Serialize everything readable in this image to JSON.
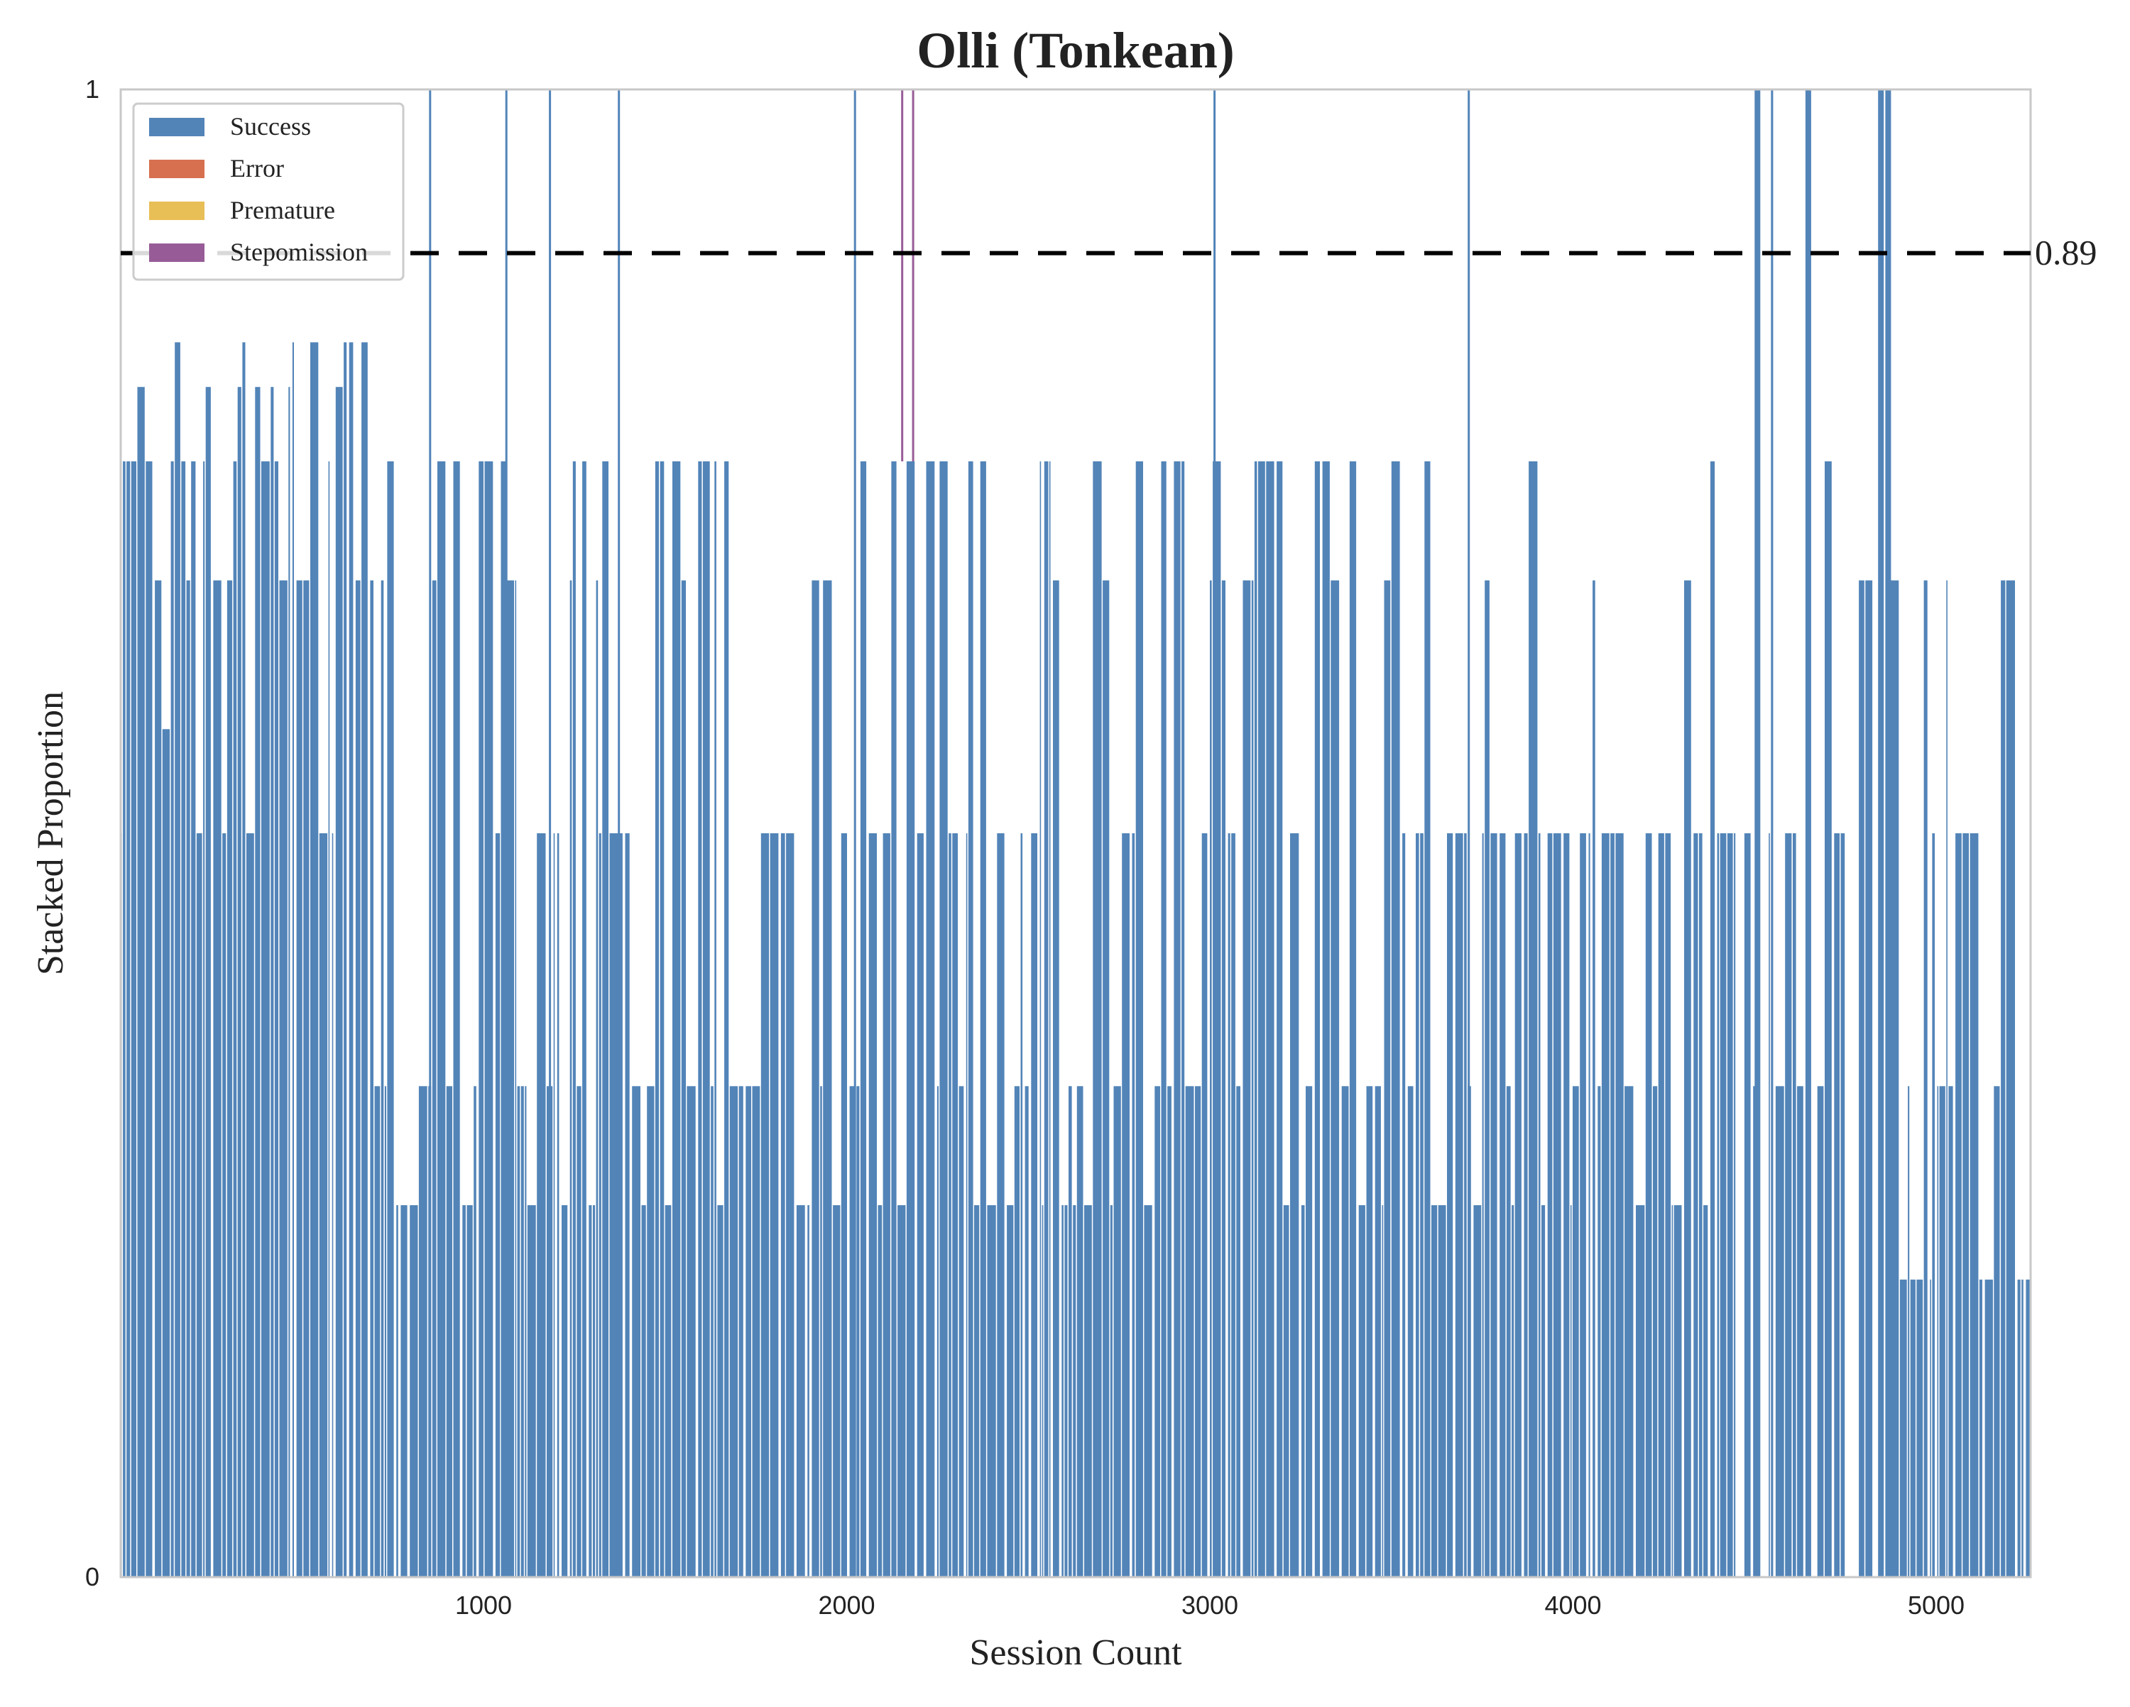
{
  "chart_data": {
    "type": "bar",
    "stacked": true,
    "title": "Olli (Tonkean)",
    "xlabel": "Session Count",
    "ylabel": "Stacked Proportion",
    "xlim": [
      1,
      5260
    ],
    "ylim": [
      0,
      1
    ],
    "x_ticks": [
      1000,
      2000,
      3000,
      4000,
      5000
    ],
    "y_ticks": [
      0,
      1
    ],
    "legend_position": "top-left",
    "reference_line": {
      "value": 0.89,
      "label": "0.89",
      "style": "dashed",
      "color": "#000000"
    },
    "series": [
      {
        "name": "Success",
        "color": "#5284b8"
      },
      {
        "name": "Error",
        "color": "#d6704f"
      },
      {
        "name": "Premature",
        "color": "#e8be56"
      },
      {
        "name": "Stepomission",
        "color": "#975c97"
      }
    ],
    "note_values": "Success proportions by session range (bars fluctuate between levels 0.25, 0.33, 0.5, 0.67, 0.75, 1.0); error and premature are ~0; two stepomission spikes near session 2150 and 2180.",
    "segments": [
      {
        "from": 1,
        "to": 150,
        "levels": [
          0.57,
          0.8,
          0.67,
          0.75,
          0.5
        ],
        "pattern": "varied"
      },
      {
        "from": 150,
        "to": 700,
        "levels": [
          0.67,
          0.75,
          0.8,
          0.5,
          0.83
        ],
        "pattern": "varied-high"
      },
      {
        "from": 700,
        "to": 1500,
        "levels": [
          0.5,
          0.67,
          0.75,
          0.33,
          0.25
        ],
        "pattern": "varied"
      },
      {
        "from": 1500,
        "to": 2600,
        "levels": [
          0.5,
          0.33,
          0.67,
          0.25,
          0.75
        ],
        "pattern": "varied"
      },
      {
        "from": 2600,
        "to": 3500,
        "levels": [
          0.5,
          0.67,
          0.33,
          0.75,
          0.25
        ],
        "pattern": "varied"
      },
      {
        "from": 3500,
        "to": 4450,
        "levels": [
          0.5,
          0.67,
          0.75,
          0.33,
          0.25
        ],
        "pattern": "dense-mid"
      },
      {
        "from": 4450,
        "to": 4900,
        "levels": [
          0.5,
          0.75,
          1.0,
          0.33,
          0.67
        ],
        "pattern": "sparse-high"
      },
      {
        "from": 4900,
        "to": 5260,
        "levels": [
          0.5,
          0.33,
          0.2,
          0.67
        ],
        "pattern": "varied-low"
      }
    ],
    "spikes_full": [
      850,
      1060,
      1180,
      1370,
      2020,
      3010,
      3710,
      4500,
      4640,
      4840,
      4860
    ],
    "stepomission_at": [
      2150,
      2180
    ]
  }
}
